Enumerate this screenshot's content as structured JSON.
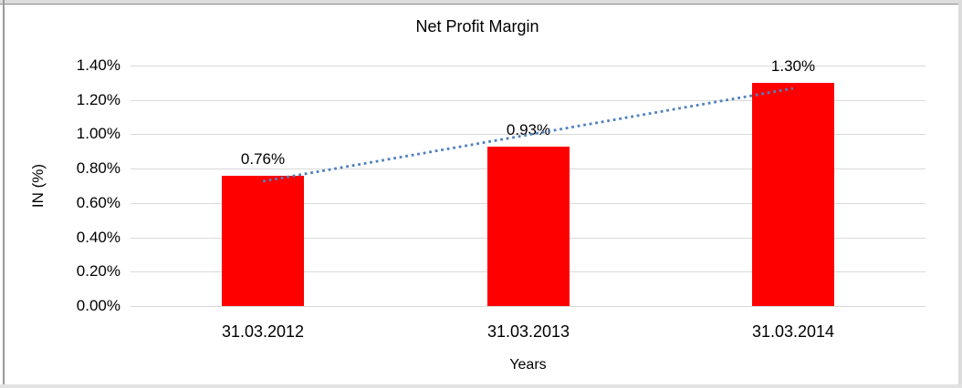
{
  "chart_data": {
    "type": "bar",
    "title": "Net Profit Margin",
    "xlabel": "Years",
    "ylabel": "IN (%)",
    "categories": [
      "31.03.2012",
      "31.03.2013",
      "31.03.2014"
    ],
    "values": [
      0.76,
      0.93,
      1.3
    ],
    "data_labels": [
      "0.76%",
      "0.93%",
      "1.30%"
    ],
    "ylim": [
      0,
      1.4
    ],
    "yticks": [
      0.0,
      0.2,
      0.4,
      0.6,
      0.8,
      1.0,
      1.2,
      1.4
    ],
    "ytick_labels": [
      "0.00%",
      "0.20%",
      "0.40%",
      "0.60%",
      "0.80%",
      "1.00%",
      "1.20%",
      "1.40%"
    ],
    "grid": "horizontal",
    "legend": "none",
    "bar_color": "#FF0000",
    "gridline_color": "#D9D9D9",
    "text_color": "#000000",
    "trendline": {
      "type": "linear",
      "style": "dotted",
      "color": "#4F81BD"
    }
  }
}
